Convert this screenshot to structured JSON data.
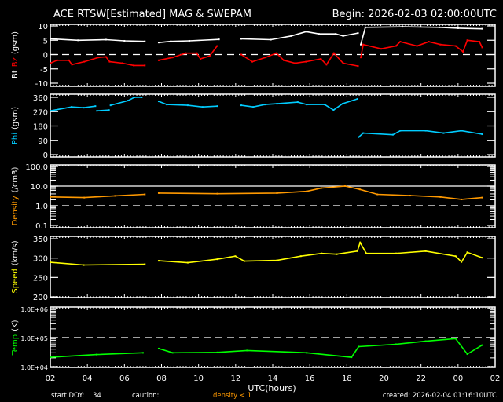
{
  "header": {
    "title": "ACE RTSW[Estimated] MAG & SWEPAM",
    "begin": "Begin: 2026-02-03 02:00:00UTC"
  },
  "footer": {
    "start_doy_label": "start DOY:",
    "start_doy": "34",
    "caution_label": "caution:",
    "caution_text": "density < 1",
    "caution_color": "#ff9900",
    "created": "created: 2026-02-04 01:16:10UTC"
  },
  "chart_data": {
    "type": "line",
    "xlabel": "UTC(hours)",
    "x_range": [
      "2026-02-03 02:00",
      "2026-02-04 02:00"
    ],
    "x_tick_labels": [
      "02",
      "04",
      "06",
      "08",
      "10",
      "12",
      "14",
      "16",
      "18",
      "20",
      "22",
      "00",
      "02"
    ],
    "grid": false,
    "panels": [
      {
        "id": "mag",
        "ylabel": [
          {
            "text": "Bt",
            "color": "#ffffff"
          },
          {
            "text": "Bz",
            "color": "#ff0000"
          },
          {
            "text": "(gsm)",
            "color": "#ffffff"
          }
        ],
        "scale": "linear",
        "ylim": [
          -10,
          10
        ],
        "y_ticks": [
          10,
          5,
          0,
          -5,
          -10
        ],
        "y_tick_labels": [
          "10",
          "5",
          "0",
          "-5",
          "-10"
        ],
        "ref_lines": [
          {
            "value": 0,
            "style": "dashed"
          }
        ],
        "series": [
          {
            "name": "Bt",
            "color": "#ffffff",
            "points": [
              [
                "02:00",
                5.5
              ],
              [
                "03:30",
                5.0
              ],
              [
                "05:00",
                5.2
              ],
              [
                "06:00",
                4.8
              ],
              [
                "07:06",
                4.6
              ],
              null,
              [
                "07:51",
                4.2
              ],
              [
                "08:30",
                4.6
              ],
              [
                "09:30",
                4.8
              ],
              [
                "11:06",
                5.3
              ],
              null,
              [
                "12:18",
                5.5
              ],
              [
                "13:54",
                5.2
              ],
              [
                "15:00",
                6.5
              ],
              [
                "15:48",
                8.0
              ],
              [
                "16:30",
                7.2
              ],
              [
                "17:24",
                7.2
              ],
              [
                "17:48",
                6.5
              ],
              [
                "18:36",
                7.5
              ],
              null,
              [
                "18:45",
                3.5
              ],
              [
                "19:00",
                9.5
              ],
              [
                "21:00",
                9.7
              ],
              [
                "23:00",
                9.5
              ],
              [
                "00:00",
                9.2
              ],
              [
                "01:18",
                9.0
              ]
            ]
          },
          {
            "name": "Bz",
            "color": "#ff0000",
            "points": [
              [
                "02:00",
                -3
              ],
              [
                "02:22",
                -2
              ],
              [
                "03:00",
                -2
              ],
              [
                "03:10",
                -3.5
              ],
              [
                "03:50",
                -2.5
              ],
              [
                "04:36",
                -1
              ],
              [
                "05:00",
                -0.8
              ],
              [
                "05:12",
                -2.5
              ],
              [
                "05:54",
                -3
              ],
              [
                "06:30",
                -3.8
              ],
              [
                "07:06",
                -3.8
              ],
              null,
              [
                "07:51",
                -2
              ],
              [
                "08:36",
                -1
              ],
              [
                "09:18",
                0.5
              ],
              [
                "09:54",
                0.5
              ],
              [
                "10:06",
                -1.5
              ],
              [
                "10:36",
                -0.5
              ],
              [
                "11:00",
                3
              ],
              null,
              [
                "12:18",
                0
              ],
              [
                "12:54",
                -2.5
              ],
              [
                "13:36",
                -1
              ],
              [
                "14:12",
                0.5
              ],
              [
                "14:36",
                -2
              ],
              [
                "15:12",
                -3
              ],
              [
                "15:48",
                -2.5
              ],
              [
                "16:36",
                -1.5
              ],
              [
                "16:54",
                -3.5
              ],
              [
                "17:18",
                0.5
              ],
              [
                "17:48",
                -3
              ],
              [
                "18:36",
                -4
              ],
              null,
              [
                "18:45",
                -1
              ],
              [
                "18:53",
                3.5
              ],
              [
                "19:51",
                2
              ],
              [
                "20:39",
                3
              ],
              [
                "20:53",
                4.5
              ],
              [
                "21:47",
                3
              ],
              [
                "22:25",
                4.5
              ],
              [
                "23:03",
                3.5
              ],
              [
                "23:52",
                3
              ],
              [
                "00:16",
                1
              ],
              [
                "00:30",
                5
              ],
              [
                "01:09",
                4.5
              ],
              [
                "01:18",
                2.5
              ]
            ]
          }
        ]
      },
      {
        "id": "phi",
        "ylabel": [
          {
            "text": "Phi",
            "color": "#00ccff"
          },
          {
            "text": "(gsm)",
            "color": "#ffffff"
          }
        ],
        "scale": "linear",
        "ylim": [
          0,
          360
        ],
        "y_ticks": [
          360,
          270,
          180,
          90,
          0
        ],
        "y_tick_labels": [
          "360",
          "270",
          "180",
          "90",
          "0"
        ],
        "ref_lines": [],
        "series": [
          {
            "name": "Phi",
            "color": "#00ccff",
            "points": [
              [
                "02:00",
                275
              ],
              [
                "03:09",
                300
              ],
              [
                "03:48",
                295
              ],
              [
                "04:26",
                305
              ],
              null,
              [
                "04:31",
                275
              ],
              [
                "05:10",
                280
              ],
              null,
              [
                "05:15",
                310
              ],
              [
                "06:12",
                340
              ],
              [
                "06:32",
                360
              ],
              [
                "06:56",
                360
              ],
              null,
              [
                "07:51",
                335
              ],
              [
                "08:17",
                315
              ],
              [
                "09:25",
                310
              ],
              [
                "10:13",
                300
              ],
              [
                "11:01",
                305
              ],
              null,
              [
                "12:18",
                310
              ],
              [
                "12:57",
                300
              ],
              [
                "13:35",
                315
              ],
              [
                "14:14",
                320
              ],
              [
                "15:21",
                330
              ],
              [
                "15:50",
                315
              ],
              [
                "16:48",
                315
              ],
              [
                "17:17",
                280
              ],
              [
                "17:46",
                320
              ],
              [
                "18:34",
                350
              ],
              null,
              [
                "18:38",
                110
              ],
              [
                "18:53",
                135
              ],
              [
                "20:29",
                125
              ],
              [
                "20:53",
                150
              ],
              [
                "22:15",
                150
              ],
              [
                "23:13",
                135
              ],
              [
                "00:11",
                150
              ],
              [
                "01:18",
                128
              ]
            ]
          }
        ]
      },
      {
        "id": "density",
        "ylabel": [
          {
            "text": "Density",
            "color": "#ff9900"
          },
          {
            "text": "(/cm3)",
            "color": "#ffffff"
          }
        ],
        "scale": "log",
        "ylim": [
          0.1,
          100
        ],
        "y_ticks": [
          100,
          10,
          1,
          0.1
        ],
        "y_tick_labels": [
          "100.0",
          "10.0",
          "1.0",
          "0.1"
        ],
        "ref_lines": [
          {
            "value": 10,
            "style": "solid"
          },
          {
            "value": 1,
            "style": "dashed"
          }
        ],
        "series": [
          {
            "name": "Density",
            "color": "#ff9900",
            "points": [
              [
                "02:00",
                2.8
              ],
              [
                "03:50",
                2.6
              ],
              [
                "05:30",
                3.2
              ],
              [
                "07:06",
                3.8
              ],
              null,
              [
                "07:51",
                4.4
              ],
              [
                "11:01",
                4.1
              ],
              [
                "14:14",
                4.4
              ],
              [
                "15:50",
                5.4
              ],
              [
                "16:37",
                7.9
              ],
              [
                "17:54",
                10
              ],
              [
                "18:42",
                6.8
              ],
              [
                "19:39",
                3.8
              ],
              [
                "21:25",
                3.3
              ],
              [
                "23:03",
                2.8
              ],
              [
                "00:11",
                2.1
              ],
              [
                "01:18",
                2.6
              ]
            ]
          }
        ]
      },
      {
        "id": "speed",
        "ylabel": [
          {
            "text": "Speed",
            "color": "#ffff00"
          },
          {
            "text": "(km/s)",
            "color": "#ffffff"
          }
        ],
        "scale": "linear",
        "ylim": [
          200,
          350
        ],
        "y_ticks": [
          350,
          300,
          250,
          200
        ],
        "y_tick_labels": [
          "350",
          "300",
          "250",
          "200"
        ],
        "ref_lines": [],
        "series": [
          {
            "name": "Speed",
            "color": "#ffff00",
            "points": [
              [
                "02:00",
                289
              ],
              [
                "03:48",
                282
              ],
              [
                "07:06",
                284
              ],
              null,
              [
                "07:51",
                293
              ],
              [
                "09:25",
                288
              ],
              [
                "11:01",
                297
              ],
              [
                "11:59",
                305
              ],
              [
                "12:28",
                292
              ],
              [
                "14:14",
                294
              ],
              [
                "15:31",
                305
              ],
              [
                "16:38",
                312
              ],
              [
                "17:27",
                310
              ],
              [
                "18:34",
                318
              ],
              [
                "18:43",
                340
              ],
              [
                "19:03",
                312
              ],
              [
                "20:39",
                312
              ],
              [
                "22:15",
                318
              ],
              [
                "23:52",
                305
              ],
              [
                "00:11",
                290
              ],
              [
                "00:30",
                315
              ],
              [
                "01:18",
                301
              ]
            ]
          }
        ]
      },
      {
        "id": "temp",
        "ylabel": [
          {
            "text": "Temp",
            "color": "#00ff00"
          },
          {
            "text": "(K)",
            "color": "#ffffff"
          }
        ],
        "scale": "log",
        "ylim": [
          10000,
          1000000
        ],
        "y_ticks": [
          1000000,
          100000,
          10000
        ],
        "y_tick_labels": [
          "1.0E+06",
          "1.0E+05",
          "1.0E+04"
        ],
        "ref_lines": [
          {
            "value": 100000,
            "style": "dashed"
          }
        ],
        "series": [
          {
            "name": "Temp",
            "color": "#00ff00",
            "points": [
              [
                "02:00",
                21000
              ],
              [
                "04:30",
                26000
              ],
              [
                "07:00",
                30000
              ],
              null,
              [
                "07:51",
                42000
              ],
              [
                "08:36",
                30000
              ],
              [
                "11:01",
                31000
              ],
              [
                "12:37",
                36000
              ],
              [
                "15:50",
                30000
              ],
              [
                "18:15",
                21000
              ],
              [
                "18:38",
                49000
              ],
              [
                "20:39",
                59000
              ],
              [
                "22:15",
                75000
              ],
              [
                "23:52",
                92000
              ],
              [
                "00:30",
                27000
              ],
              [
                "01:18",
                55000
              ]
            ]
          }
        ]
      }
    ]
  }
}
